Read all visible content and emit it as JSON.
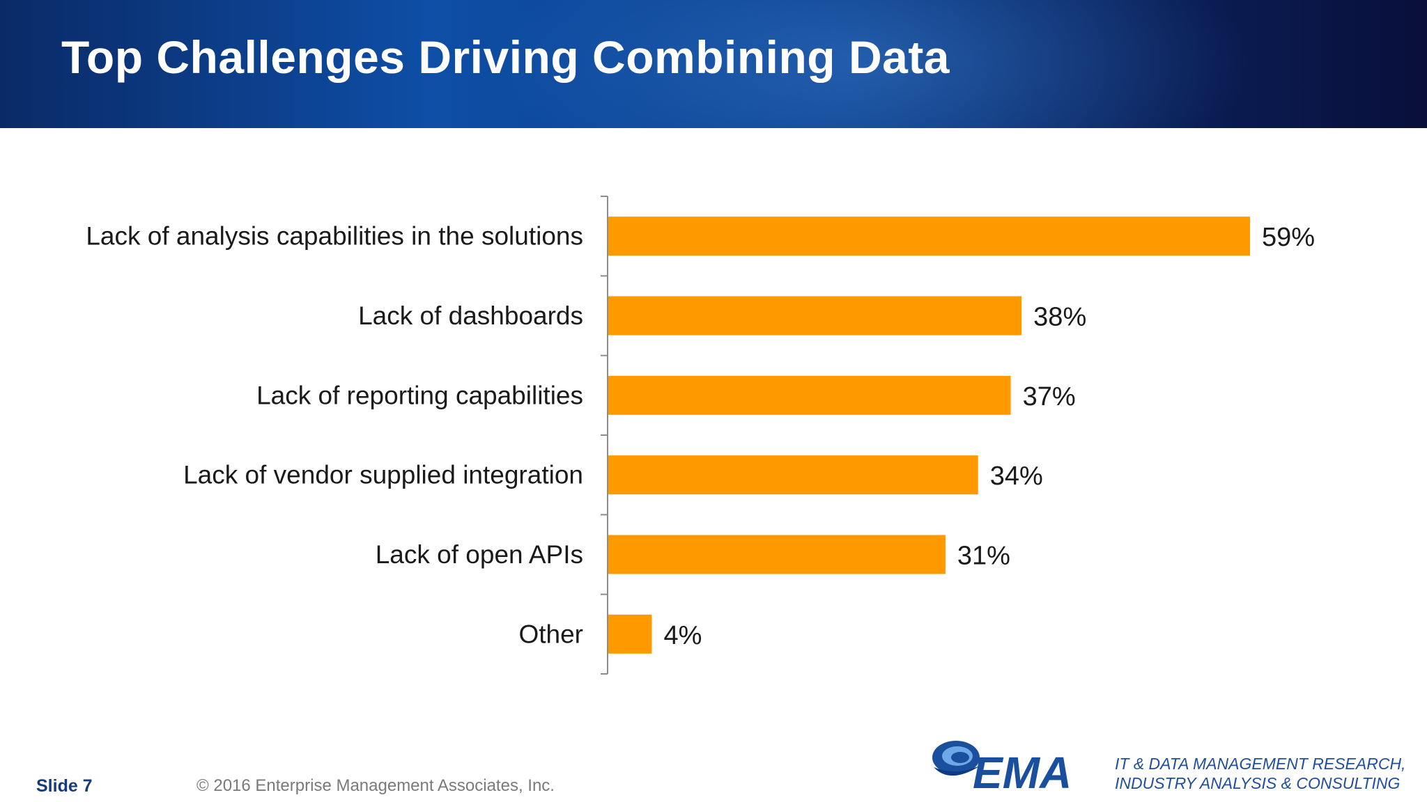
{
  "slide": {
    "title": "Top Challenges Driving Combining Data",
    "number_label": "Slide 7",
    "copyright": "© 2016 Enterprise Management Associates, Inc."
  },
  "branding": {
    "logo_text": "EMA",
    "logo_icon": "ema-swirl-logo",
    "tagline_line1": "IT & DATA MANAGEMENT RESEARCH,",
    "tagline_line2": "INDUSTRY ANALYSIS & CONSULTING"
  },
  "colors": {
    "bar": "#FF9900",
    "header_dark": "#0a2a66",
    "title_text": "#ffffff",
    "tagline": "#1f4f9e"
  },
  "chart_data": {
    "type": "bar",
    "orientation": "horizontal",
    "title": "Top Challenges Driving Combining Data",
    "categories": [
      "Lack of analysis capabilities in the solutions",
      "Lack of dashboards",
      "Lack of reporting capabilities",
      "Lack of vendor supplied integration",
      "Lack of open APIs",
      "Other"
    ],
    "values": [
      59,
      38,
      37,
      34,
      31,
      4
    ],
    "value_labels": [
      "59%",
      "38%",
      "37%",
      "34%",
      "31%",
      "4%"
    ],
    "unit": "%",
    "xlim": [
      0,
      59
    ],
    "grid": false,
    "legend": "none"
  }
}
